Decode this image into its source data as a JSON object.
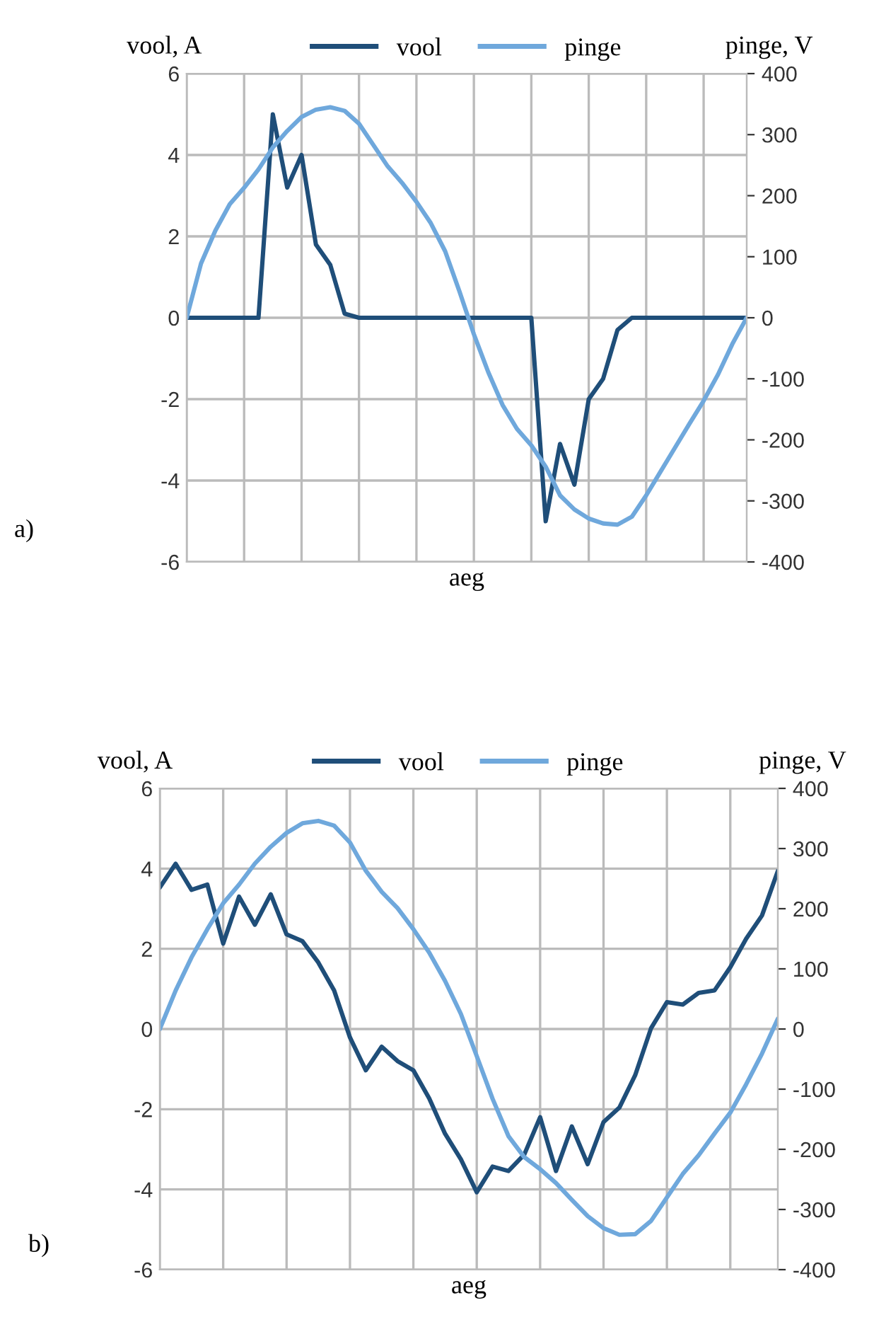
{
  "chart_data": [
    {
      "type": "line",
      "xlabel": "aeg",
      "ylabel": "vool, A",
      "y2label": "pinge, V",
      "categories": [
        null,
        null,
        null,
        null,
        null,
        null,
        null,
        null,
        null,
        null,
        null,
        null,
        null,
        null,
        null,
        null,
        null,
        null,
        null,
        null,
        null,
        null,
        null,
        null,
        null,
        null,
        null,
        null,
        null,
        null,
        null,
        null,
        null,
        null,
        null,
        null,
        null,
        null,
        null,
        null
      ],
      "series": [
        {
          "name": "vool",
          "color": "#1f4e79",
          "values": [
            0,
            0,
            0,
            0,
            0,
            0,
            5.0,
            3.2,
            4.0,
            1.8,
            1.3,
            0.1,
            0,
            0,
            0,
            0,
            0,
            0,
            0,
            0,
            0,
            0,
            0,
            0,
            0,
            -5.0,
            -3.1,
            -4.1,
            -2.0,
            -1.5,
            -0.3,
            0,
            0,
            0,
            0,
            0,
            0,
            0,
            0,
            0
          ]
        },
        {
          "name": "pinge",
          "color": "#6fa8dc",
          "axis": "y2",
          "values": [
            0,
            89,
            143,
            186,
            213,
            243,
            279,
            306,
            329,
            341,
            345,
            339,
            318,
            283,
            248,
            221,
            190,
            155,
            109,
            43,
            -27,
            -89,
            -143,
            -182,
            -209,
            -244,
            -291,
            -314,
            -329,
            -337,
            -339,
            -326,
            -291,
            -252,
            -213,
            -174,
            -136,
            -93,
            -43,
            0
          ]
        }
      ],
      "ylim": [
        -6,
        6
      ],
      "yticks": [
        -6,
        -4,
        -2,
        0,
        2,
        4,
        6
      ],
      "y2lim": [
        -400,
        400
      ],
      "y2ticks": [
        -400,
        -300,
        -200,
        -100,
        0,
        100,
        200,
        300,
        400
      ],
      "grid": true,
      "legend": "top",
      "tick_labels": "y",
      "annotations": [
        "a)"
      ]
    },
    {
      "type": "line",
      "xlabel": "aeg",
      "ylabel": "vool, A",
      "y2label": "pinge, V",
      "categories": [
        null,
        null,
        null,
        null,
        null,
        null,
        null,
        null,
        null,
        null,
        null,
        null,
        null,
        null,
        null,
        null,
        null,
        null,
        null,
        null,
        null,
        null,
        null,
        null,
        null,
        null,
        null,
        null,
        null,
        null,
        null,
        null,
        null,
        null,
        null,
        null,
        null,
        null,
        null,
        null
      ],
      "series": [
        {
          "name": "vool",
          "color": "#1f4e79",
          "values": [
            3.53,
            4.12,
            3.47,
            3.6,
            2.13,
            3.3,
            2.6,
            3.36,
            2.36,
            2.19,
            1.66,
            0.96,
            -0.21,
            -1.03,
            -0.44,
            -0.8,
            -1.03,
            -1.73,
            -2.61,
            -3.25,
            -4.07,
            -3.43,
            -3.54,
            -3.13,
            -2.2,
            -3.54,
            -2.43,
            -3.37,
            -2.32,
            -1.96,
            -1.15,
            0.02,
            0.67,
            0.61,
            0.9,
            0.96,
            1.54,
            2.25,
            2.83,
            3.94
          ]
        },
        {
          "name": "pinge",
          "color": "#6fa8dc",
          "axis": "y2",
          "values": [
            0,
            64,
            119,
            166,
            209,
            240,
            275,
            303,
            326,
            342,
            346,
            338,
            310,
            263,
            228,
            201,
            166,
            127,
            80,
            25,
            -45,
            -116,
            -178,
            -213,
            -233,
            -256,
            -284,
            -311,
            -331,
            -342,
            -341,
            -319,
            -280,
            -241,
            -210,
            -174,
            -139,
            -92,
            -41,
            17
          ]
        }
      ],
      "ylim": [
        -6,
        6
      ],
      "yticks": [
        -6,
        -4,
        -2,
        0,
        2,
        4,
        6
      ],
      "y2lim": [
        -400,
        400
      ],
      "y2ticks": [
        -400,
        -300,
        -200,
        -100,
        0,
        100,
        200,
        300,
        400
      ],
      "grid": true,
      "legend": "top",
      "tick_labels": "y",
      "annotations": [
        "b)"
      ]
    }
  ]
}
